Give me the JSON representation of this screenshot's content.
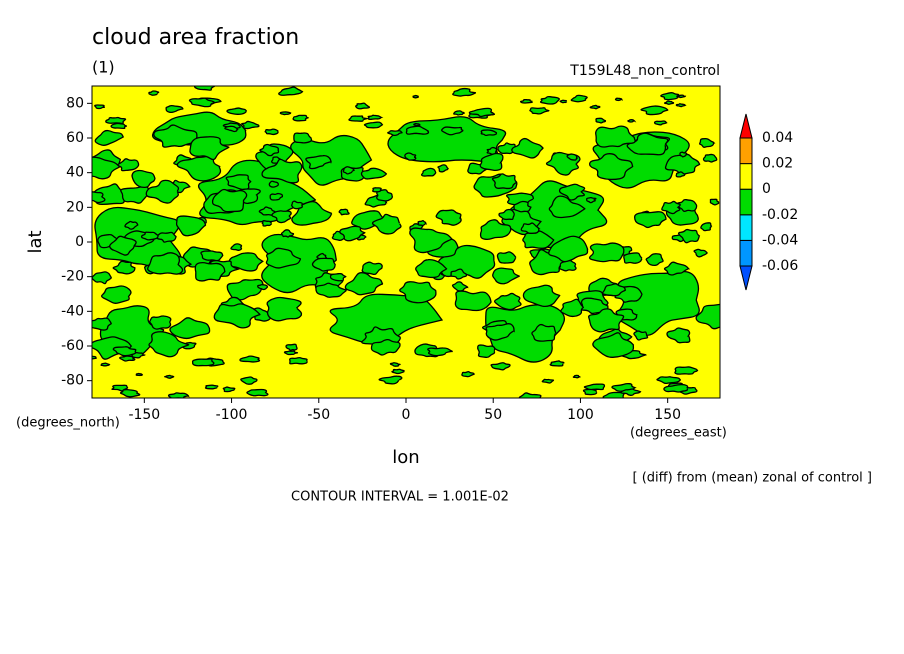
{
  "chart_data": {
    "type": "contour",
    "title": "cloud area fraction",
    "subtitle": "(1)",
    "run_label": "T159L48_non_control",
    "x_label": "lon",
    "y_label": "lat",
    "x_units": "(degrees_east)",
    "y_units": "(degrees_north)",
    "note": "[ (diff) from (mean) zonal of control ]",
    "contour_interval": "CONTOUR INTERVAL = 1.001E-02",
    "xlim": [
      -180,
      180
    ],
    "xticks": [
      -150,
      -100,
      -50,
      0,
      50,
      100,
      150
    ],
    "ylim": [
      -90,
      90
    ],
    "yticks": [
      -80,
      -60,
      -40,
      -20,
      0,
      20,
      40,
      60,
      80
    ],
    "colorbar": {
      "levels": [
        -0.06,
        -0.04,
        -0.02,
        0,
        0.02,
        0.04
      ],
      "colors": [
        "#0050ff",
        "#0096ff",
        "#00e6ff",
        "#00dc00",
        "#ffff00",
        "#ffa000",
        "#ff0000"
      ]
    }
  }
}
